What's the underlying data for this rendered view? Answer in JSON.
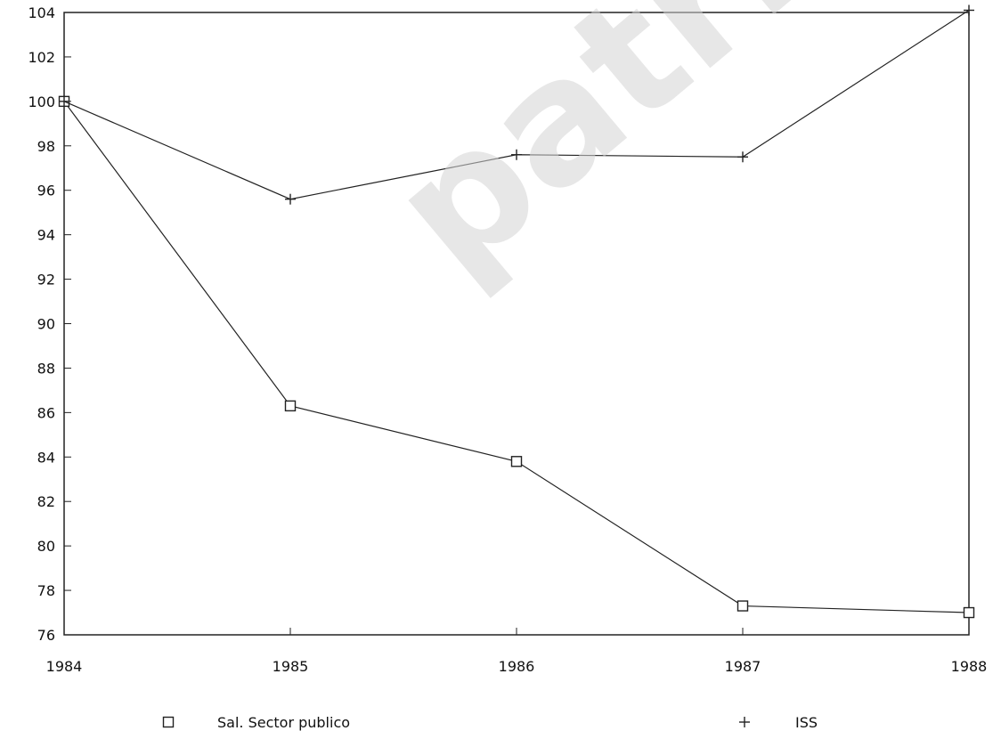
{
  "chart_data": {
    "type": "line",
    "title": "",
    "xlabel": "",
    "ylabel": "",
    "categories": [
      "1984",
      "1985",
      "1986",
      "1987",
      "1988"
    ],
    "ylim": [
      76,
      104
    ],
    "yticks": [
      76,
      78,
      80,
      82,
      84,
      86,
      88,
      90,
      92,
      94,
      96,
      98,
      100,
      102,
      104
    ],
    "grid": false,
    "legend": "bottom",
    "series": [
      {
        "name": "Sal. Sector publico",
        "marker": "□",
        "values": [
          100,
          86.3,
          83.8,
          77.3,
          77.0
        ]
      },
      {
        "name": "ISS",
        "marker": "+",
        "values": [
          100,
          95.6,
          97.6,
          97.5,
          104.1
        ]
      }
    ]
  },
  "watermark": {
    "text": "patricioaylwin.cl"
  },
  "colors": {
    "line": "#222222",
    "watermark": "#d0d0d0"
  }
}
